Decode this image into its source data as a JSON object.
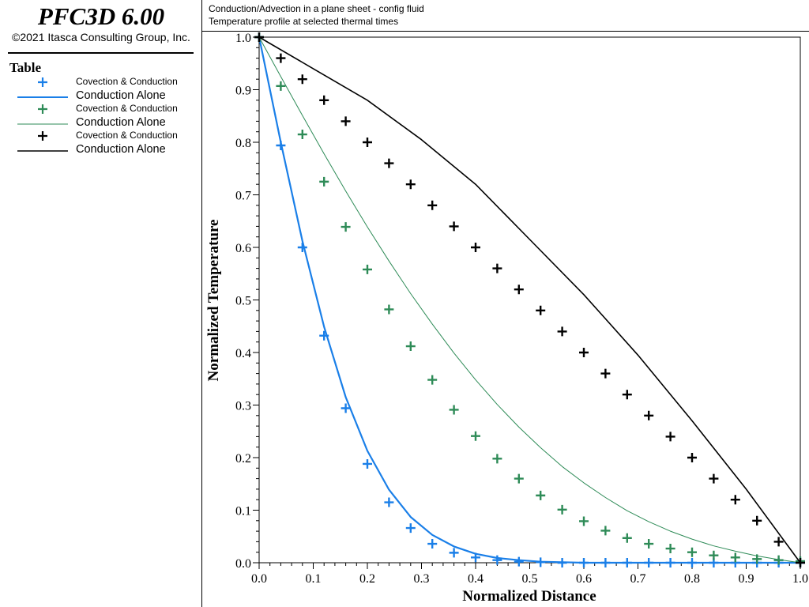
{
  "app": {
    "title": "PFC3D 6.00",
    "copyright": "©2021 Itasca Consulting Group, Inc."
  },
  "legend": {
    "title": "Table",
    "items": [
      {
        "line1": "Covection & Conduction",
        "line2": "",
        "color": "#1a7fe8",
        "marker": "plus"
      },
      {
        "line1": "",
        "line2": "Conduction Alone",
        "color": "#1a7fe8",
        "marker": "line-thick"
      },
      {
        "line1": "Covection & Conduction",
        "line2": "",
        "color": "#2e8b57",
        "marker": "plus"
      },
      {
        "line1": "",
        "line2": "Conduction Alone",
        "color": "#2e8b57",
        "marker": "line-thin"
      },
      {
        "line1": "Covection & Conduction",
        "line2": "",
        "color": "#000000",
        "marker": "plus"
      },
      {
        "line1": "",
        "line2": "Conduction Alone",
        "color": "#000000",
        "marker": "line-thin"
      }
    ]
  },
  "header": {
    "line1": "Conduction/Advection in a plane sheet - config fluid",
    "line2": "Temperature profile at selected thermal times"
  },
  "chart_data": {
    "type": "scatter",
    "xlabel": "Normalized Distance",
    "ylabel": "Normalized Temperature",
    "xlim": [
      0.0,
      1.0
    ],
    "ylim": [
      0.0,
      1.0
    ],
    "x_ticks": [
      "0.0",
      "0.1",
      "0.2",
      "0.3",
      "0.4",
      "0.5",
      "0.6",
      "0.7",
      "0.8",
      "0.9",
      "1.0"
    ],
    "y_ticks": [
      "0.0",
      "0.1",
      "0.2",
      "0.3",
      "0.4",
      "0.5",
      "0.6",
      "0.7",
      "0.8",
      "0.9",
      "1.0"
    ],
    "series": [
      {
        "legend_line1": "Covection & Conduction",
        "style": "markers",
        "color": "#1a7fe8",
        "x": [
          0.0,
          0.04,
          0.08,
          0.12,
          0.16,
          0.2,
          0.24,
          0.28,
          0.32,
          0.36,
          0.4,
          0.44,
          0.48,
          0.52,
          0.56,
          0.6,
          0.64,
          0.68,
          0.72,
          0.76,
          0.8,
          0.84,
          0.88,
          0.92,
          0.96,
          1.0
        ],
        "y": [
          1.0,
          0.794,
          0.6,
          0.432,
          0.294,
          0.188,
          0.115,
          0.066,
          0.036,
          0.019,
          0.01,
          0.005,
          0.002,
          0.001,
          0.0,
          0.0,
          0.0,
          0.0,
          0.0,
          0.0,
          0.0,
          0.0,
          0.0,
          0.0,
          0.0,
          0.0
        ]
      },
      {
        "legend_line2": "Conduction Alone",
        "style": "line-thick",
        "color": "#1a7fe8",
        "x": [
          0.0,
          0.04,
          0.08,
          0.12,
          0.16,
          0.2,
          0.24,
          0.28,
          0.32,
          0.36,
          0.4,
          0.44,
          0.48,
          0.52,
          0.56,
          0.6,
          0.64,
          0.68,
          0.72,
          0.76,
          0.8,
          0.84,
          0.88,
          0.92,
          0.96,
          1.0
        ],
        "y": [
          1.0,
          0.8,
          0.612,
          0.449,
          0.315,
          0.213,
          0.139,
          0.087,
          0.053,
          0.031,
          0.017,
          0.009,
          0.005,
          0.002,
          0.001,
          0.0,
          0.0,
          0.0,
          0.0,
          0.0,
          0.0,
          0.0,
          0.0,
          0.0,
          0.0,
          0.0
        ]
      },
      {
        "legend_line1": "Covection & Conduction",
        "style": "markers",
        "color": "#2e8b57",
        "x": [
          0.0,
          0.04,
          0.08,
          0.12,
          0.16,
          0.2,
          0.24,
          0.28,
          0.32,
          0.36,
          0.4,
          0.44,
          0.48,
          0.52,
          0.56,
          0.6,
          0.64,
          0.68,
          0.72,
          0.76,
          0.8,
          0.84,
          0.88,
          0.92,
          0.96,
          1.0
        ],
        "y": [
          1.0,
          0.907,
          0.815,
          0.725,
          0.639,
          0.558,
          0.482,
          0.412,
          0.348,
          0.291,
          0.241,
          0.198,
          0.16,
          0.128,
          0.101,
          0.079,
          0.061,
          0.047,
          0.036,
          0.027,
          0.02,
          0.014,
          0.01,
          0.007,
          0.005,
          0.003
        ]
      },
      {
        "legend_line2": "Conduction Alone",
        "style": "line-thin",
        "color": "#2e8b57",
        "x": [
          0.0,
          0.04,
          0.08,
          0.12,
          0.16,
          0.2,
          0.24,
          0.28,
          0.32,
          0.36,
          0.4,
          0.44,
          0.48,
          0.52,
          0.56,
          0.6,
          0.64,
          0.68,
          0.72,
          0.76,
          0.8,
          0.84,
          0.88,
          0.92,
          0.96,
          1.0
        ],
        "y": [
          1.0,
          0.925,
          0.851,
          0.778,
          0.707,
          0.639,
          0.574,
          0.512,
          0.454,
          0.399,
          0.348,
          0.301,
          0.258,
          0.219,
          0.183,
          0.152,
          0.124,
          0.099,
          0.078,
          0.06,
          0.045,
          0.032,
          0.022,
          0.013,
          0.006,
          0.0
        ]
      },
      {
        "legend_line1": "Covection & Conduction",
        "style": "markers",
        "color": "#000000",
        "x": [
          0.0,
          0.04,
          0.08,
          0.12,
          0.16,
          0.2,
          0.24,
          0.28,
          0.32,
          0.36,
          0.4,
          0.44,
          0.48,
          0.52,
          0.56,
          0.6,
          0.64,
          0.68,
          0.72,
          0.76,
          0.8,
          0.84,
          0.88,
          0.92,
          0.96,
          1.0
        ],
        "y": [
          1.0,
          0.96,
          0.92,
          0.88,
          0.84,
          0.8,
          0.76,
          0.72,
          0.68,
          0.64,
          0.6,
          0.56,
          0.52,
          0.48,
          0.44,
          0.4,
          0.36,
          0.32,
          0.28,
          0.24,
          0.2,
          0.16,
          0.12,
          0.08,
          0.04,
          0.0
        ]
      },
      {
        "legend_line2": "Conduction Alone",
        "style": "line-thin",
        "color": "#000000",
        "x": [
          0.0,
          0.1,
          0.2,
          0.3,
          0.4,
          0.5,
          0.6,
          0.7,
          0.8,
          0.9,
          1.0
        ],
        "y": [
          1.0,
          0.94,
          0.88,
          0.805,
          0.72,
          0.615,
          0.51,
          0.395,
          0.27,
          0.14,
          0.0
        ]
      }
    ]
  }
}
